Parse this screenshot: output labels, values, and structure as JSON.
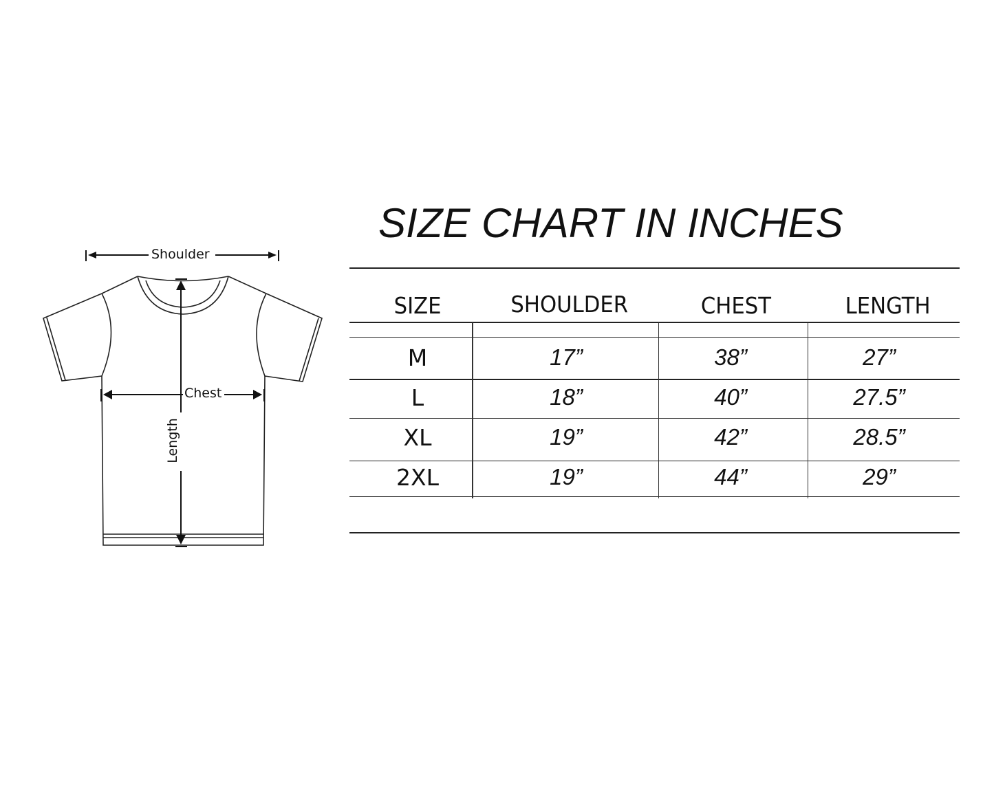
{
  "title": "SIZE CHART IN INCHES",
  "diagram": {
    "shoulder_label": "Shoulder",
    "chest_label": "Chest",
    "length_label": "Length"
  },
  "chart_data": {
    "type": "table",
    "title": "SIZE CHART IN INCHES",
    "headers": [
      "SIZE",
      "SHOULDER",
      "CHEST",
      "LENGTH"
    ],
    "rows": [
      {
        "size": "M",
        "shoulder": "17”",
        "chest": "38”",
        "length": "27”"
      },
      {
        "size": "L",
        "shoulder": "18”",
        "chest": "40”",
        "length": "27.5”"
      },
      {
        "size": "XL",
        "shoulder": "19”",
        "chest": "42”",
        "length": "28.5”"
      },
      {
        "size": "2XL",
        "shoulder": "19”",
        "chest": "44”",
        "length": "29”"
      }
    ]
  }
}
